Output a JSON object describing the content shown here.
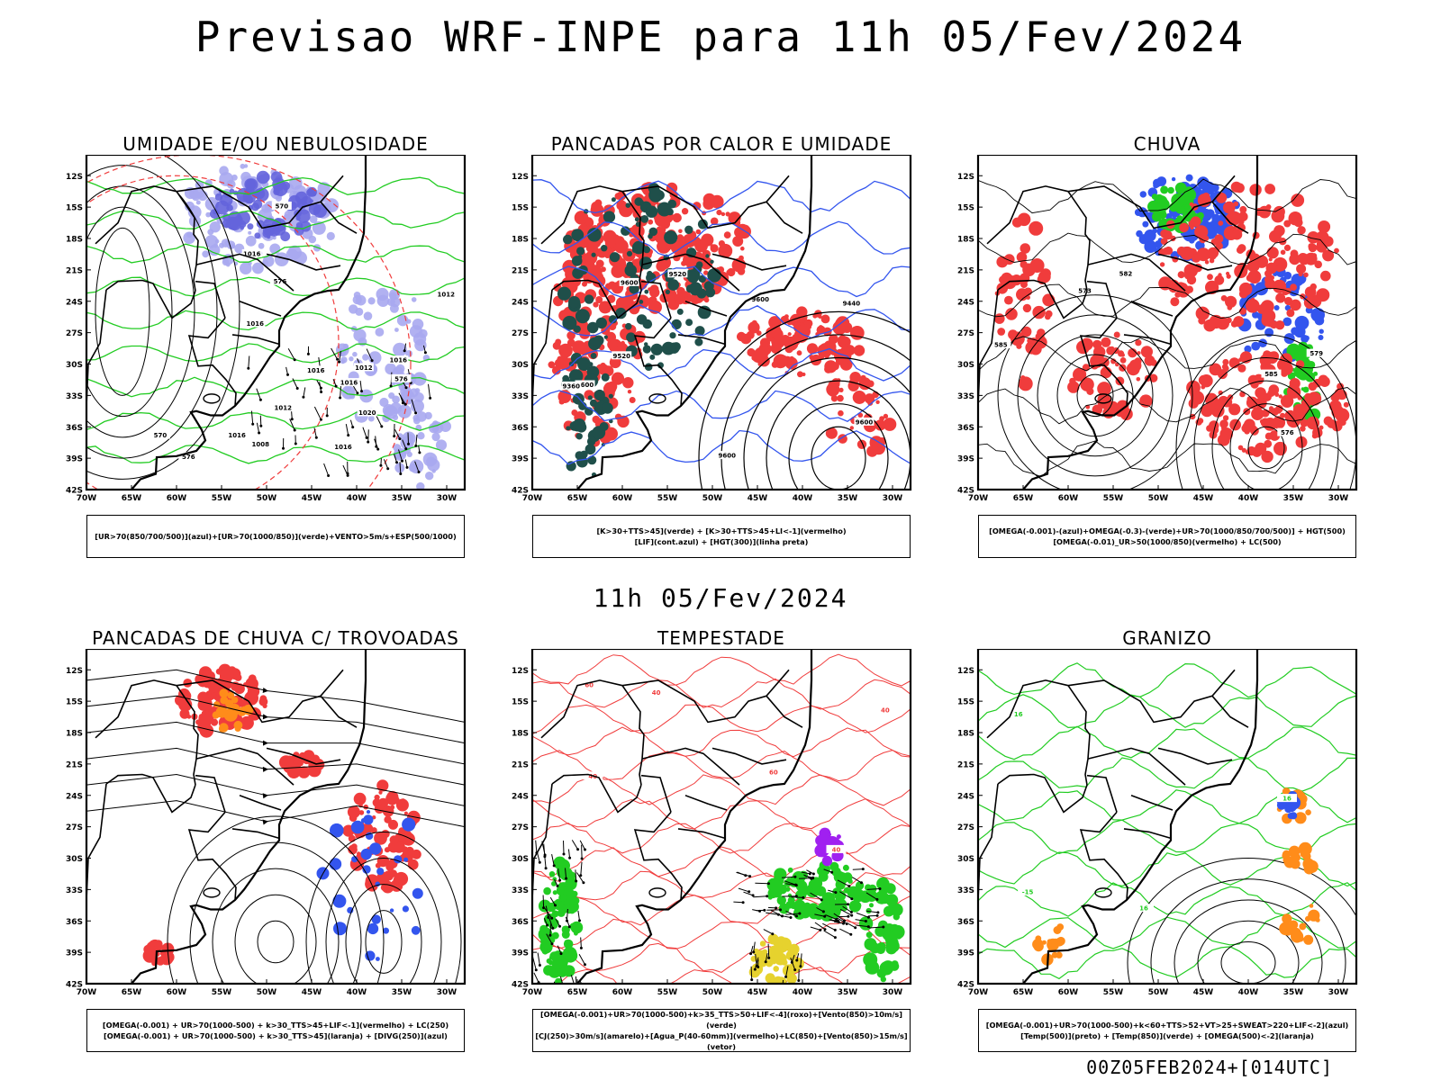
{
  "header": {
    "title": "Previsao WRF-INPE  para 11h 05/Fev/2024"
  },
  "middle": {
    "label": "11h 05/Fev/2024"
  },
  "footer": {
    "stamp": "00Z05FEB2024+[014UTC]"
  },
  "axes": {
    "lat_ticks": [
      "12S",
      "15S",
      "18S",
      "21S",
      "24S",
      "27S",
      "30S",
      "33S",
      "36S",
      "39S",
      "42S"
    ],
    "lon_ticks": [
      "70W",
      "65W",
      "60W",
      "55W",
      "50W",
      "45W",
      "40W",
      "35W",
      "30W"
    ]
  },
  "colors": {
    "blue_light": "#a9a9f0",
    "blue_dark": "#6464dc",
    "green": "#22cc22",
    "red": "#f03c3c",
    "dark_teal": "#1f4f4a",
    "blue_line": "#3355ee",
    "orange": "#ff8c1a",
    "yellow": "#e6d22e",
    "purple": "#a020f0"
  },
  "chart_data": [
    {
      "type": "map",
      "title": "UMIDADE E/OU NEBULOSIDADE",
      "legend_lines": [
        "[UR>70(850/700/500)](azul)+[UR>70(1000/850)](verde)+VENTO>5m/s+ESP(500/1000)"
      ],
      "contour_labels": [
        "1016",
        "1016",
        "1016",
        "1016",
        "1016",
        "1016",
        "1016",
        "1012",
        "1012",
        "1008",
        "1020",
        "1012",
        "576",
        "576",
        "570",
        "570",
        "576"
      ]
    },
    {
      "type": "map",
      "title": "PANCADAS POR CALOR E UMIDADE",
      "legend_lines": [
        "[K>30+TTS>45](verde) + [K>30+TTS>45+LI<-1](vermelho)",
        "[LIF](cont.azul) + [HGT(300)](linha preta)"
      ],
      "contour_labels": [
        "9600",
        "9600",
        "9600",
        "9600",
        "9600",
        "9520",
        "9440",
        "9360",
        "9520"
      ]
    },
    {
      "type": "map",
      "title": "CHUVA",
      "legend_lines": [
        "[OMEGA(-0.001)-(azul)+OMEGA(-0.3)-(verde)+UR>70(1000/850/700/500)] + HGT(500)",
        "[OMEGA(-0.01)_UR>50(1000/850)(vermelho) + LC(500)"
      ],
      "contour_labels": [
        "585",
        "582",
        "585",
        "573",
        "579",
        "576"
      ]
    },
    {
      "type": "map",
      "title": "PANCADAS DE CHUVA C/ TROVOADAS",
      "legend_lines": [
        "[OMEGA(-0.001) + UR>70(1000-500) + k>30_TTS>45+LIF<-1](vermelho) + LC(250)",
        "[OMEGA(-0.001) + UR>70(1000-500) + k>30_TTS>45](laranja) + [DIVG(250)](azul)"
      ],
      "contour_labels": []
    },
    {
      "type": "map",
      "title": "TEMPESTADE",
      "legend_lines": [
        "[OMEGA(-0.001)+UR>70(1000-500)+k>35_TTS>50+LIF<-4](roxo)+[Vento(850)>10m/s](verde)",
        "[CJ(250)>30m/s](amarelo)+[Agua_P(40-60mm)](vermelho)+LC(850)+[Vento(850)>15m/s](vetor)"
      ],
      "contour_labels": [
        "40",
        "40",
        "60",
        "40",
        "40",
        "60"
      ]
    },
    {
      "type": "map",
      "title": "GRANIZO",
      "legend_lines": [
        "[OMEGA(-0.001)+UR>70(1000-500)+k<60+TTS>52+VT>25+SWEAT>220+LIF<-2](azul)",
        "[Temp(500)](preto) + [Temp(850)](verde) + [OMEGA(500)<-2](laranja)"
      ],
      "contour_labels": [
        "16",
        "16",
        "16",
        "-15"
      ]
    }
  ]
}
